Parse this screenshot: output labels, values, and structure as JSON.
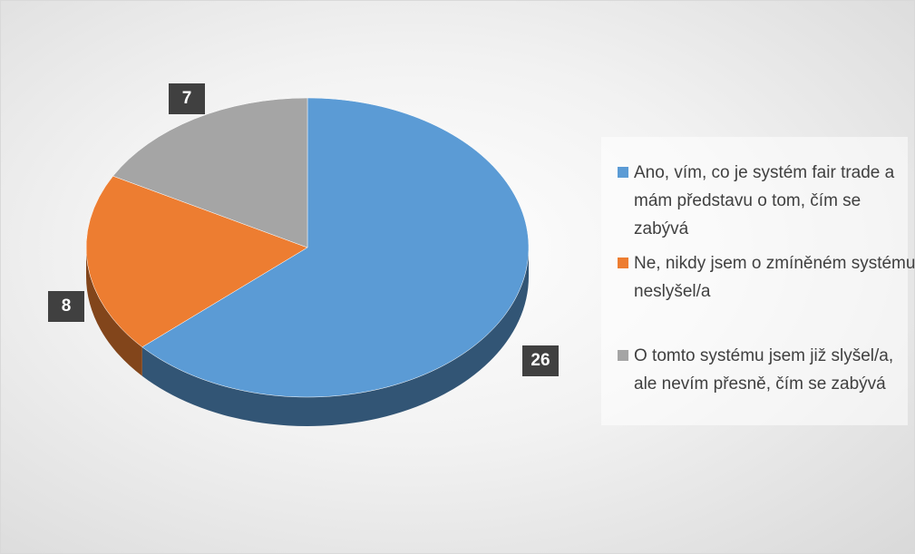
{
  "chart_data": {
    "type": "pie",
    "three_d": true,
    "categories": [
      "Ano, vím, co je systém fair trade a mám představu o tom, čím se zabývá",
      "Ne, nikdy jsem o zmíněném systému neslyšel/a",
      "O tomto systému jsem již slyšel/a, ale nevím přesně, čím se zabývá"
    ],
    "values": [
      26,
      8,
      7
    ],
    "colors": [
      "#5b9bd5",
      "#ed7d31",
      "#a5a5a5"
    ],
    "legend": "right"
  }
}
